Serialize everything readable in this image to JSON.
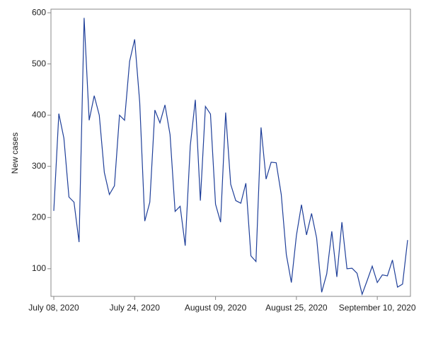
{
  "chart_data": {
    "type": "line",
    "ylabel": "New cases",
    "color": "#1f3f99",
    "x": [
      "2020-07-08",
      "2020-07-09",
      "2020-07-10",
      "2020-07-11",
      "2020-07-12",
      "2020-07-13",
      "2020-07-14",
      "2020-07-15",
      "2020-07-16",
      "2020-07-17",
      "2020-07-18",
      "2020-07-19",
      "2020-07-20",
      "2020-07-21",
      "2020-07-22",
      "2020-07-23",
      "2020-07-24",
      "2020-07-25",
      "2020-07-26",
      "2020-07-27",
      "2020-07-28",
      "2020-07-29",
      "2020-07-30",
      "2020-07-31",
      "2020-08-01",
      "2020-08-02",
      "2020-08-03",
      "2020-08-04",
      "2020-08-05",
      "2020-08-06",
      "2020-08-07",
      "2020-08-08",
      "2020-08-09",
      "2020-08-10",
      "2020-08-11",
      "2020-08-12",
      "2020-08-13",
      "2020-08-14",
      "2020-08-15",
      "2020-08-16",
      "2020-08-17",
      "2020-08-18",
      "2020-08-19",
      "2020-08-20",
      "2020-08-21",
      "2020-08-22",
      "2020-08-23",
      "2020-08-24",
      "2020-08-25",
      "2020-08-26",
      "2020-08-27",
      "2020-08-28",
      "2020-08-29",
      "2020-08-30",
      "2020-08-31",
      "2020-09-01",
      "2020-09-02",
      "2020-09-03",
      "2020-09-04",
      "2020-09-05",
      "2020-09-06",
      "2020-09-07",
      "2020-09-08",
      "2020-09-09",
      "2020-09-10",
      "2020-09-11",
      "2020-09-12",
      "2020-09-13",
      "2020-09-14",
      "2020-09-15",
      "2020-09-16"
    ],
    "values": [
      213,
      403,
      355,
      240,
      230,
      152,
      590,
      390,
      438,
      400,
      288,
      245,
      262,
      400,
      390,
      505,
      548,
      425,
      193,
      230,
      410,
      385,
      420,
      362,
      212,
      222,
      145,
      340,
      430,
      233,
      417,
      402,
      226,
      191,
      405,
      265,
      233,
      228,
      267,
      125,
      114,
      376,
      275,
      308,
      307,
      245,
      128,
      73,
      165,
      225,
      166,
      208,
      160,
      54,
      90,
      173,
      84,
      191,
      100,
      101,
      91,
      50,
      77,
      105,
      73,
      88,
      86,
      117,
      64,
      70,
      156
    ],
    "xlim": [
      "2020-07-08",
      "2020-09-16"
    ],
    "xticks": [
      {
        "value": "2020-07-08",
        "label": "July 08, 2020"
      },
      {
        "value": "2020-07-24",
        "label": "July 24, 2020"
      },
      {
        "value": "2020-08-09",
        "label": "August 09, 2020"
      },
      {
        "value": "2020-08-25",
        "label": "August 25, 2020"
      },
      {
        "value": "2020-09-10",
        "label": "September 10, 2020"
      }
    ],
    "ylim": [
      46,
      607
    ],
    "yticks": [
      100,
      200,
      300,
      400,
      500,
      600
    ]
  }
}
